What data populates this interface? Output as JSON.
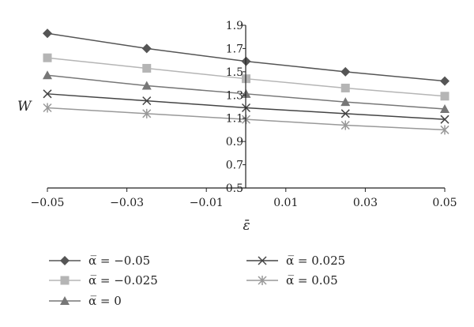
{
  "chart_data": {
    "type": "line",
    "x": [
      -0.05,
      -0.025,
      0,
      0.025,
      0.05
    ],
    "xticks": [
      "−0.05",
      "−0.03",
      "−0.01",
      "0.01",
      "0.03",
      "0.05"
    ],
    "xtick_values": [
      -0.05,
      -0.03,
      -0.01,
      0.01,
      0.03,
      0.05
    ],
    "xlim": [
      -0.05,
      0.05
    ],
    "xlabel": "ε̄",
    "ylabel": "W",
    "yticks": [
      "0.5",
      "0.7",
      "0.9",
      "1.1",
      "1.3",
      "1.5",
      "1.7",
      "1.9"
    ],
    "ytick_values": [
      0.5,
      0.7,
      0.9,
      1.1,
      1.3,
      1.5,
      1.7,
      1.9
    ],
    "ylim": [
      0.5,
      1.9
    ],
    "grid": false,
    "legend_position": "bottom",
    "series": [
      {
        "name": "α̅ = −0.05",
        "values": [
          1.83,
          1.7,
          1.59,
          1.5,
          1.42
        ],
        "marker": "diamond",
        "color": "#555555"
      },
      {
        "name": "α̅ = −0.025",
        "values": [
          1.62,
          1.53,
          1.44,
          1.36,
          1.29
        ],
        "marker": "square",
        "color": "#b5b5b5"
      },
      {
        "name": "α̅ = 0",
        "values": [
          1.47,
          1.38,
          1.31,
          1.24,
          1.18
        ],
        "marker": "triangle",
        "color": "#777777"
      },
      {
        "name": "α̅ = 0.025",
        "values": [
          1.31,
          1.25,
          1.19,
          1.14,
          1.09
        ],
        "marker": "x",
        "color": "#444444"
      },
      {
        "name": "α̅ = 0.05",
        "values": [
          1.19,
          1.14,
          1.09,
          1.04,
          1.0
        ],
        "marker": "star",
        "color": "#999999"
      }
    ]
  }
}
